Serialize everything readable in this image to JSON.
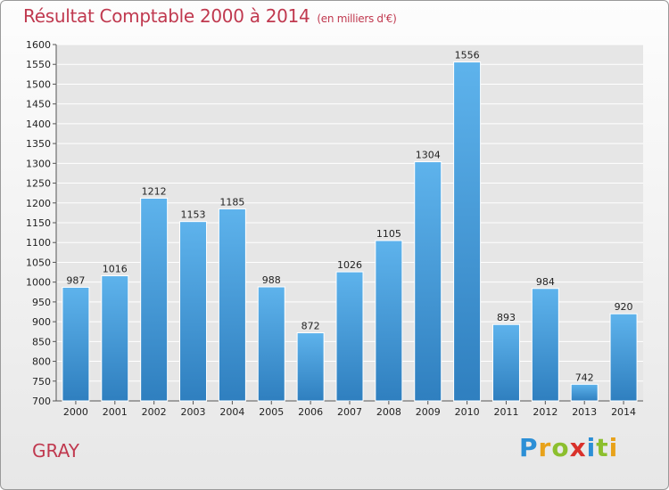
{
  "header": {
    "title": "Résultat Comptable 2000 à 2014",
    "subtitle": "(en milliers d'€)"
  },
  "footer": {
    "commune": "GRAY",
    "logo_text": "Proxiti",
    "logo_colors": [
      "#2b8fd6",
      "#e8a21a",
      "#8cbf2e",
      "#d9312b",
      "#2b8fd6",
      "#8cbf2e",
      "#e8a21a"
    ]
  },
  "colors": {
    "bar_top": "#5eb3ec",
    "bar_bottom": "#2f7fbf",
    "title": "#c0394f",
    "grid": "#ffffff"
  },
  "chart_data": {
    "type": "bar",
    "title": "Résultat Comptable 2000 à 2014",
    "xlabel": "",
    "ylabel": "",
    "ylim": [
      700,
      1600
    ],
    "ytick_step": 50,
    "grid": true,
    "categories": [
      "2000",
      "2001",
      "2002",
      "2003",
      "2004",
      "2005",
      "2006",
      "2007",
      "2008",
      "2009",
      "2010",
      "2011",
      "2012",
      "2013",
      "2014"
    ],
    "values": [
      987,
      1016,
      1212,
      1153,
      1185,
      988,
      872,
      1026,
      1105,
      1304,
      1556,
      893,
      984,
      742,
      920
    ]
  }
}
